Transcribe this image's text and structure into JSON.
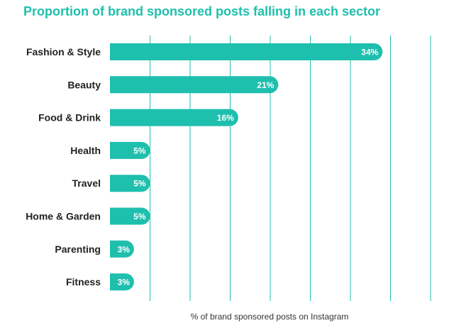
{
  "chart_data": {
    "type": "bar",
    "orientation": "horizontal",
    "title": "Proportion of brand sponsored posts falling in each sector",
    "xlabel": "% of brand sponsored posts on Instagram",
    "ylabel": "",
    "categories": [
      "Fashion & Style",
      "Beauty",
      "Food & Drink",
      "Health",
      "Travel",
      "Home & Garden",
      "Parenting",
      "Fitness"
    ],
    "values": [
      34,
      21,
      16,
      5,
      5,
      5,
      3,
      3
    ],
    "value_labels": [
      "34%",
      "21%",
      "16%",
      "5%",
      "5%",
      "5%",
      "3%",
      "3%"
    ],
    "xlim": [
      0,
      40
    ],
    "grid_step": 5,
    "grid": true,
    "legend": "none"
  },
  "colors": {
    "bar": "#1fbfae",
    "grid": "#1fbfae",
    "title": "#1fbfae",
    "label": "#222222",
    "value_text": "#ffffff"
  }
}
